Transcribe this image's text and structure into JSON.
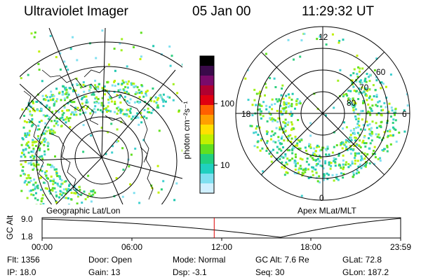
{
  "header": {
    "title": "Ultraviolet Imager",
    "date": "05 Jan 00",
    "time": "11:29:32 UT"
  },
  "colorbar": {
    "ticks": [
      "100",
      "10"
    ],
    "unit_label": "photon cm⁻²s⁻¹",
    "colors": [
      "#000000",
      "#3a0a4a",
      "#7a0a6a",
      "#b00030",
      "#e00010",
      "#ff6000",
      "#ffa000",
      "#ffe000",
      "#c0f000",
      "#60e020",
      "#20d080",
      "#20d0c0",
      "#80e0f0",
      "#d0f0ff"
    ]
  },
  "left_panel": {
    "caption": "Geographic Lat/Lon"
  },
  "right_panel": {
    "caption": "Apex  MLat/MLT",
    "mlt_labels": {
      "top": "12",
      "bottom": "0",
      "left": "18",
      "right": "6"
    },
    "lat_labels": [
      "60",
      "70",
      "80"
    ]
  },
  "timeline": {
    "axis_label": "GC Alt",
    "y_top": "9.0",
    "y_bottom": "1.8",
    "ticks": [
      "00:00",
      "06:00",
      "12:00",
      "18:00",
      "23:59"
    ],
    "current_time_fraction": 0.48,
    "marker_color": "#dd0000"
  },
  "info": {
    "row1": {
      "flt": "Flt: 1356",
      "door": "Door: Open",
      "mode": "Mode: Normal",
      "gc_alt": "GC Alt: 7.6 Re",
      "glat": "GLat:  72.8"
    },
    "row2": {
      "ip": "IP: 18.0",
      "gain": "Gain: 13",
      "dsp": "Dsp:    -3.1",
      "seq": "Seq: 30",
      "glon": "GLon: 187.2"
    }
  }
}
